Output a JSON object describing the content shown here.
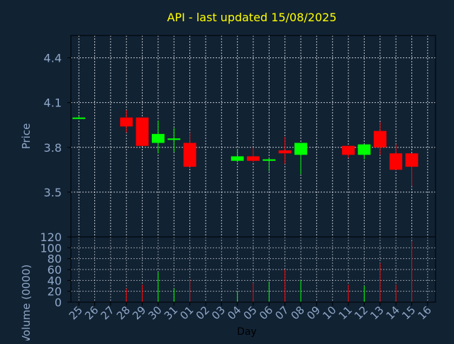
{
  "chart_data": {
    "title": "API - last updated 15/08/2025",
    "colors": {
      "background": "#112233",
      "title": "#ffff00",
      "axis_text": "#8fa8c8",
      "xlabel_text": "#000000",
      "up": "#00ff00",
      "down": "#ff0000",
      "grid": "#ffffff"
    },
    "price": {
      "type": "candlestick",
      "ylabel": "Price",
      "ylim": [
        3.2,
        4.55
      ],
      "yticks": [
        3.5,
        3.8,
        4.1,
        4.4
      ],
      "ytick_labels": [
        "3.5",
        "3.8",
        "4.1",
        "4.4"
      ],
      "grid": true
    },
    "volume": {
      "type": "bar",
      "ylabel": "Volume (0000)",
      "ylim": [
        0,
        120
      ],
      "yticks": [
        0,
        20,
        40,
        60,
        80,
        100,
        120
      ],
      "ytick_labels": [
        "0",
        "20",
        "40",
        "60",
        "80",
        "100",
        "120"
      ],
      "grid": true
    },
    "xlabel": "Day",
    "x_ticks": [
      "25",
      "26",
      "27",
      "28",
      "29",
      "30",
      "31",
      "01",
      "02",
      "03",
      "04",
      "05",
      "06",
      "07",
      "08",
      "09",
      "10",
      "11",
      "12",
      "13",
      "14",
      "15",
      "16"
    ],
    "candles": [
      {
        "day": "25",
        "open": 4.0,
        "high": 4.01,
        "low": 3.99,
        "close": 4.0,
        "volume": 0
      },
      {
        "day": "28",
        "open": 4.0,
        "high": 4.05,
        "low": 3.9,
        "close": 3.94,
        "volume": 25
      },
      {
        "day": "29",
        "open": 4.0,
        "high": 4.0,
        "low": 3.81,
        "close": 3.81,
        "volume": 32
      },
      {
        "day": "30",
        "open": 3.83,
        "high": 3.98,
        "low": 3.76,
        "close": 3.89,
        "volume": 55
      },
      {
        "day": "31",
        "open": 3.85,
        "high": 3.93,
        "low": 3.77,
        "close": 3.86,
        "volume": 25
      },
      {
        "day": "01",
        "open": 3.83,
        "high": 3.9,
        "low": 3.67,
        "close": 3.67,
        "volume": 42
      },
      {
        "day": "04",
        "open": 3.71,
        "high": 3.79,
        "low": 3.7,
        "close": 3.74,
        "volume": 20
      },
      {
        "day": "05",
        "open": 3.74,
        "high": 3.8,
        "low": 3.7,
        "close": 3.71,
        "volume": 35
      },
      {
        "day": "06",
        "open": 3.71,
        "high": 3.73,
        "low": 3.64,
        "close": 3.72,
        "volume": 38
      },
      {
        "day": "07",
        "open": 3.78,
        "high": 3.87,
        "low": 3.69,
        "close": 3.76,
        "volume": 60
      },
      {
        "day": "08",
        "open": 3.75,
        "high": 3.83,
        "low": 3.62,
        "close": 3.83,
        "volume": 40
      },
      {
        "day": "11",
        "open": 3.81,
        "high": 3.81,
        "low": 3.73,
        "close": 3.75,
        "volume": 32
      },
      {
        "day": "12",
        "open": 3.75,
        "high": 3.82,
        "low": 3.72,
        "close": 3.82,
        "volume": 30
      },
      {
        "day": "13",
        "open": 3.91,
        "high": 3.97,
        "low": 3.75,
        "close": 3.8,
        "volume": 72
      },
      {
        "day": "14",
        "open": 3.76,
        "high": 3.82,
        "low": 3.65,
        "close": 3.65,
        "volume": 32
      },
      {
        "day": "15",
        "open": 3.76,
        "high": 3.76,
        "low": 3.54,
        "close": 3.67,
        "volume": 112
      }
    ]
  }
}
